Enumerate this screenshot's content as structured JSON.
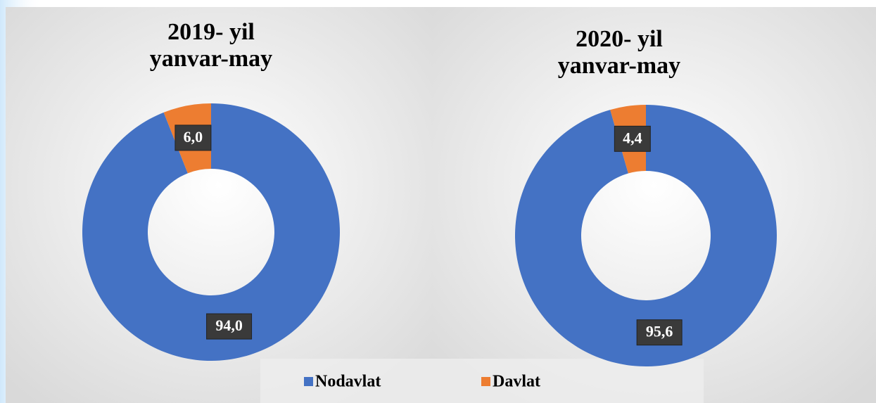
{
  "chart_data": [
    {
      "type": "donut",
      "title": [
        "2019- yil",
        "yanvar-may"
      ],
      "categories": [
        "Nodavlat",
        "Davlat"
      ],
      "values": [
        94.0,
        6.0
      ],
      "value_labels": [
        "94,0",
        "6,0"
      ],
      "colors": [
        "#4472c4",
        "#ed7d31"
      ]
    },
    {
      "type": "donut",
      "title": [
        "2020- yil",
        "yanvar-may"
      ],
      "categories": [
        "Nodavlat",
        "Davlat"
      ],
      "values": [
        95.6,
        4.4
      ],
      "value_labels": [
        "95,6",
        "4,4"
      ],
      "colors": [
        "#4472c4",
        "#ed7d31"
      ]
    }
  ],
  "legend": "bottom"
}
